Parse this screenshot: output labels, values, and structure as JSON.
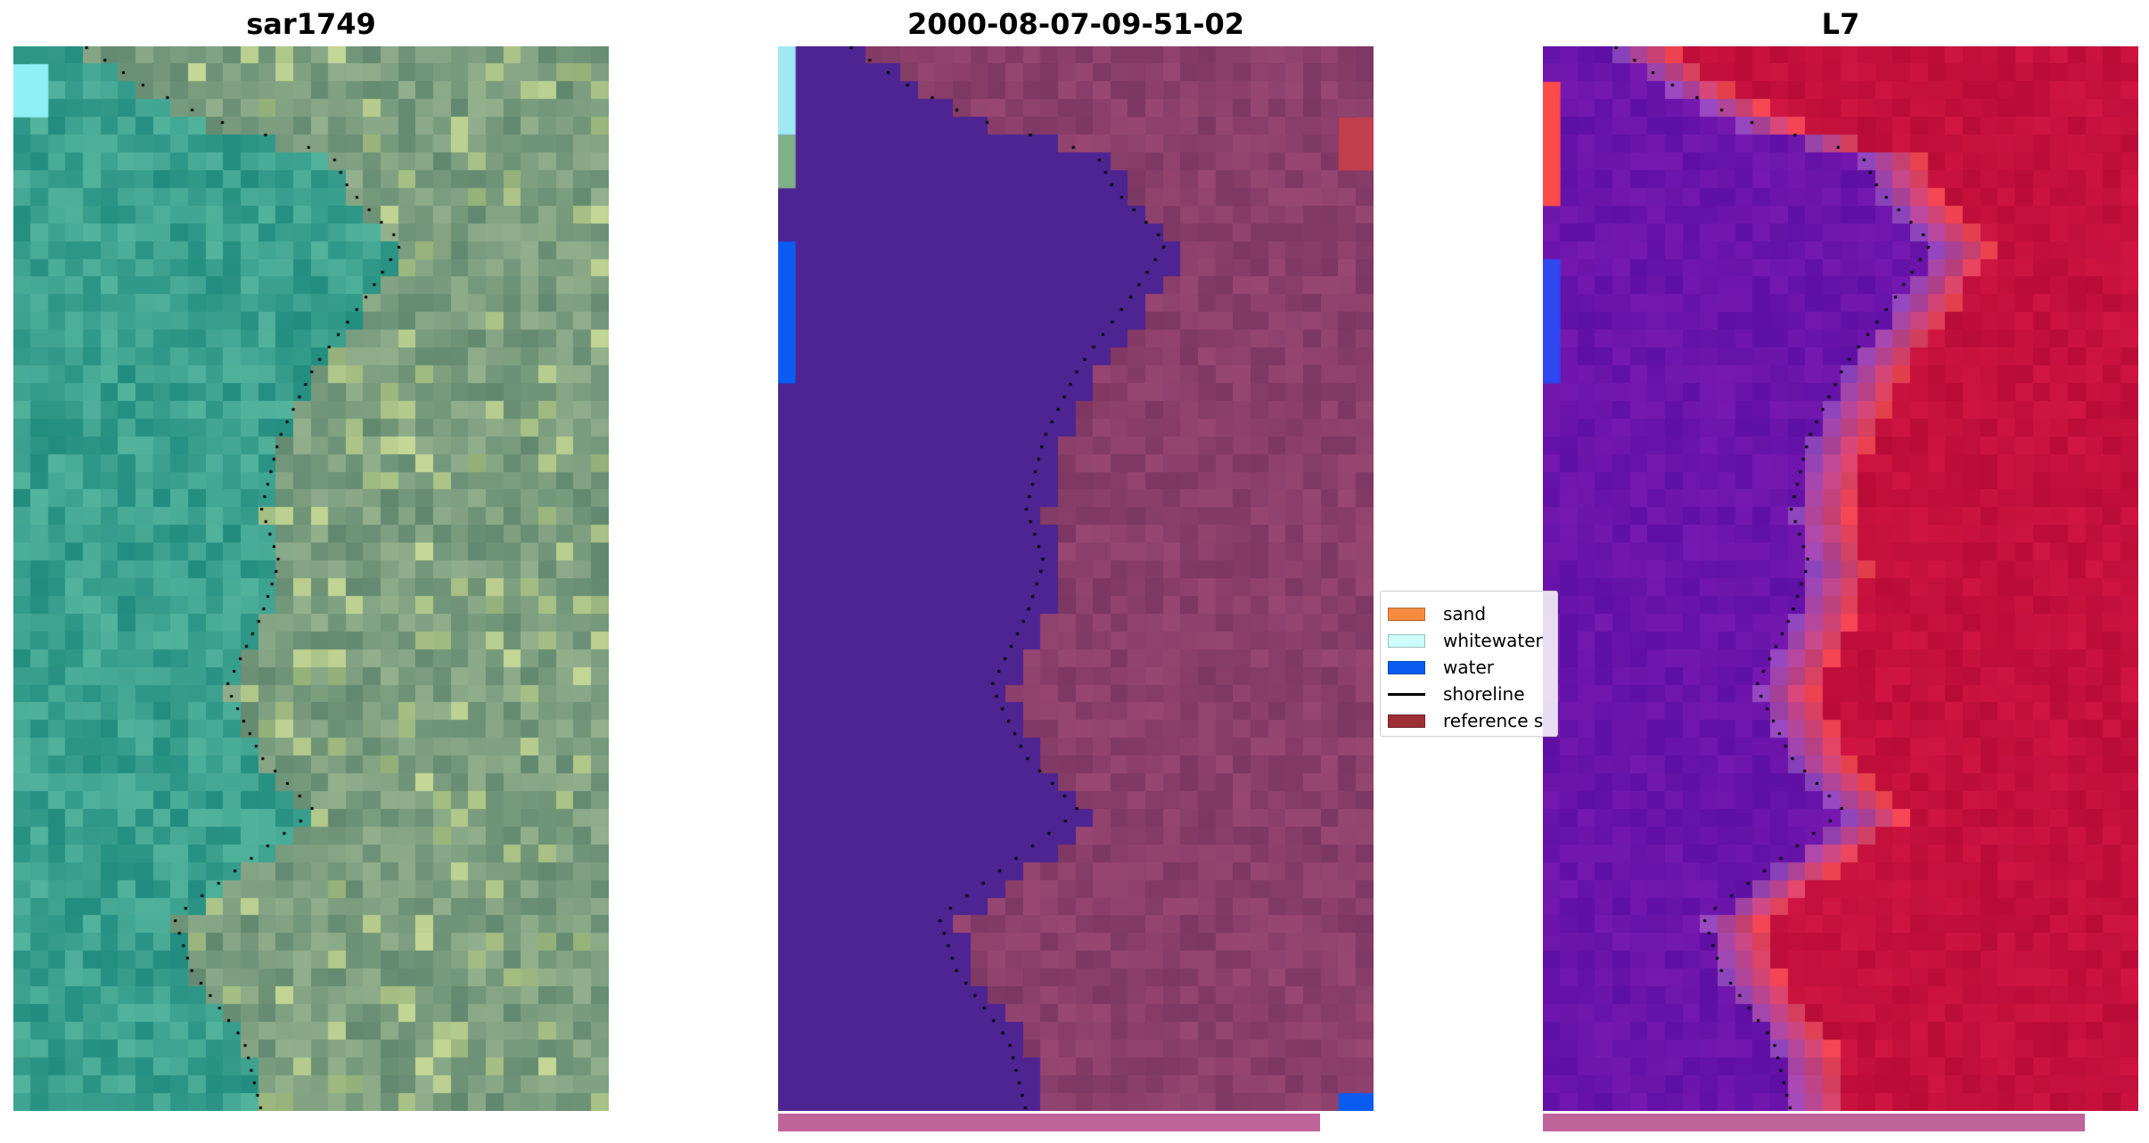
{
  "figure": {
    "panels": [
      {
        "title": "sar1749"
      },
      {
        "title": "2000-08-07-09-51-02"
      },
      {
        "title": "L7"
      }
    ]
  },
  "legend": {
    "entries": [
      {
        "label": "sand",
        "color": "#f58b3f",
        "kind": "swatch"
      },
      {
        "label": "whitewater",
        "color": "#ccfffa",
        "kind": "swatch"
      },
      {
        "label": "water",
        "color": "#0a5cf0",
        "kind": "swatch"
      },
      {
        "label": "shoreline",
        "color": "#000000",
        "kind": "line"
      },
      {
        "label": "reference s",
        "color": "#9b2f35",
        "kind": "swatch"
      }
    ]
  },
  "colors": {
    "rgb_land": "#7a9c7e",
    "rgb_water": "#3aa08e",
    "classified_water": "#4e2492",
    "classified_land": "#8a3f6a",
    "ndwi_water": "#6a14aa",
    "ndwi_land": "#c4103c",
    "bar": "#c0639a"
  }
}
